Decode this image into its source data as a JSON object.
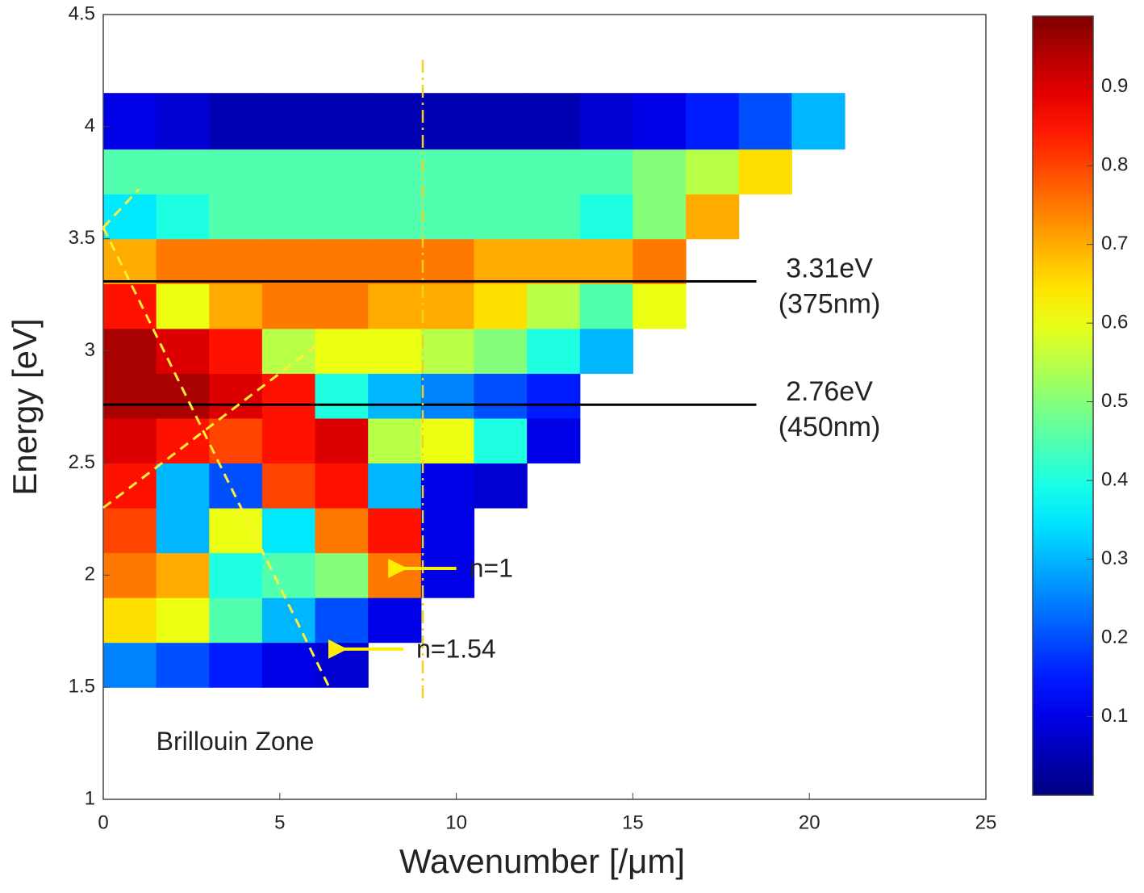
{
  "chart_data": {
    "type": "heatmap",
    "xlabel": "Wavenumber [/μm]",
    "ylabel": "Energy [eV]",
    "xlim": [
      0,
      25
    ],
    "xticks": [
      0,
      5,
      10,
      15,
      20,
      25
    ],
    "ylim": [
      1,
      4.5
    ],
    "yticks": [
      1,
      1.5,
      2,
      2.5,
      3,
      3.5,
      4,
      4.5
    ],
    "colormap": "jet",
    "clim": [
      0,
      0.99
    ],
    "cticks": [
      0.1,
      0.2,
      0.3,
      0.4,
      0.5,
      0.6,
      0.7,
      0.8,
      0.9
    ],
    "x_edges": [
      0,
      1.5,
      3,
      4.5,
      6,
      7.5,
      9,
      10.5,
      12,
      13.5,
      15,
      16.5,
      18,
      19.5,
      21
    ],
    "y_edges": [
      1.5,
      1.7,
      1.9,
      2.1,
      2.3,
      2.5,
      2.7,
      2.9,
      3.1,
      3.3,
      3.5,
      3.7,
      3.9,
      4.15
    ],
    "z": [
      [
        0.25,
        0.2,
        0.15,
        0.1,
        0.08,
        null,
        null,
        null,
        null,
        null,
        null,
        null,
        null,
        null
      ],
      [
        0.65,
        0.6,
        0.45,
        0.3,
        0.2,
        0.1,
        null,
        null,
        null,
        null,
        null,
        null,
        null,
        null
      ],
      [
        0.75,
        0.7,
        0.4,
        0.45,
        0.5,
        0.75,
        0.1,
        null,
        null,
        null,
        null,
        null,
        null,
        null
      ],
      [
        0.8,
        0.3,
        0.6,
        0.35,
        0.75,
        0.85,
        0.1,
        null,
        null,
        null,
        null,
        null,
        null,
        null
      ],
      [
        0.85,
        0.3,
        0.2,
        0.8,
        0.85,
        0.3,
        0.1,
        0.08,
        null,
        null,
        null,
        null,
        null,
        null
      ],
      [
        0.9,
        0.85,
        0.8,
        0.85,
        0.9,
        0.55,
        0.6,
        0.4,
        0.1,
        null,
        null,
        null,
        null,
        null
      ],
      [
        0.95,
        0.95,
        0.9,
        0.85,
        0.4,
        0.3,
        0.25,
        0.2,
        0.15,
        null,
        null,
        null,
        null,
        null
      ],
      [
        0.95,
        0.9,
        0.85,
        0.55,
        0.6,
        0.6,
        0.55,
        0.5,
        0.4,
        0.3,
        null,
        null,
        null,
        null
      ],
      [
        0.85,
        0.6,
        0.7,
        0.75,
        0.75,
        0.7,
        0.7,
        0.65,
        0.55,
        0.45,
        0.6,
        null,
        null,
        null
      ],
      [
        0.7,
        0.75,
        0.75,
        0.75,
        0.75,
        0.75,
        0.75,
        0.7,
        0.7,
        0.7,
        0.75,
        null,
        null,
        null
      ],
      [
        0.35,
        0.4,
        0.45,
        0.45,
        0.45,
        0.45,
        0.45,
        0.45,
        0.45,
        0.4,
        0.5,
        0.7,
        null,
        null
      ],
      [
        0.45,
        0.45,
        0.45,
        0.45,
        0.45,
        0.45,
        0.45,
        0.45,
        0.45,
        0.45,
        0.5,
        0.55,
        0.65,
        null
      ],
      [
        0.1,
        0.08,
        0.05,
        0.05,
        0.05,
        0.05,
        0.05,
        0.05,
        0.05,
        0.08,
        0.1,
        0.15,
        0.2,
        0.3
      ]
    ],
    "energy_lines": [
      {
        "value": 3.31,
        "x": [
          0,
          18.5
        ],
        "label": "3.31eV",
        "sublabel": "(375nm)"
      },
      {
        "value": 2.76,
        "x": [
          0,
          18.5
        ],
        "label": "2.76eV",
        "sublabel": "(450nm)"
      }
    ],
    "arrows": [
      {
        "label": "n=1",
        "x": [
          10,
          8.3
        ],
        "y": 2.03
      },
      {
        "label": "n=1.54",
        "x": [
          8.5,
          6.6
        ],
        "y": 1.67
      }
    ],
    "dashed_lines": [
      {
        "x": [
          0,
          6.4
        ],
        "y": [
          3.55,
          1.5
        ]
      },
      {
        "x": [
          0,
          6
        ],
        "y": [
          2.3,
          3.02
        ]
      },
      {
        "x": [
          0,
          1
        ],
        "y": [
          3.55,
          3.72
        ]
      }
    ],
    "vertical_line": {
      "x": 9.05,
      "y": [
        1.45,
        4.3
      ]
    },
    "region_label": {
      "text": "Brillouin Zone",
      "x": 1.5,
      "y": 1.25
    }
  }
}
